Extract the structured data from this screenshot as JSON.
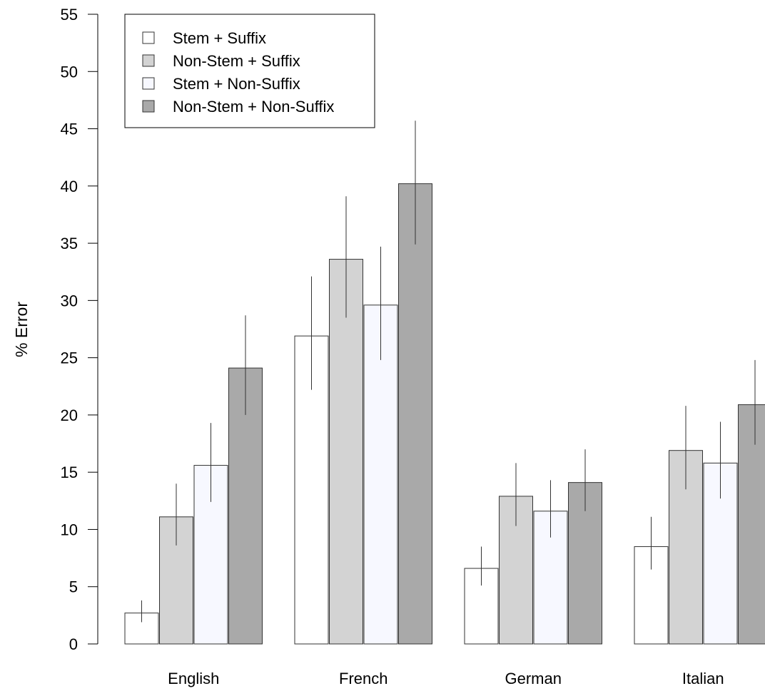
{
  "chart_data": {
    "type": "bar",
    "title": "",
    "xlabel": "",
    "ylabel": "% Error",
    "ylim": [
      0,
      55
    ],
    "yticks": [
      0,
      5,
      10,
      15,
      20,
      25,
      30,
      35,
      40,
      45,
      50,
      55
    ],
    "categories": [
      "English",
      "French",
      "German",
      "Italian"
    ],
    "grid": false,
    "legend": "top-left",
    "series": [
      {
        "name": "Stem + Suffix",
        "color": "#ffffff",
        "values": [
          2.7,
          26.9,
          6.6,
          8.5
        ],
        "error_low": [
          1.9,
          22.2,
          5.1,
          6.5
        ],
        "error_high": [
          3.8,
          32.1,
          8.5,
          11.1
        ]
      },
      {
        "name": "Non-Stem + Suffix",
        "color": "#d3d3d3",
        "values": [
          11.1,
          33.6,
          12.9,
          16.9
        ],
        "error_low": [
          8.6,
          28.5,
          10.3,
          13.5
        ],
        "error_high": [
          14.0,
          39.1,
          15.8,
          20.8
        ]
      },
      {
        "name": "Stem + Non-Suffix",
        "color": "#f7f8ff",
        "values": [
          15.6,
          29.6,
          11.6,
          15.8
        ],
        "error_low": [
          12.4,
          24.8,
          9.3,
          12.7
        ],
        "error_high": [
          19.3,
          34.7,
          14.3,
          19.4
        ]
      },
      {
        "name": "Non-Stem + Non-Suffix",
        "color": "#a9a9a9",
        "values": [
          24.1,
          40.2,
          14.1,
          20.9
        ],
        "error_low": [
          20.0,
          34.9,
          11.6,
          17.4
        ],
        "error_high": [
          28.7,
          45.7,
          17.0,
          24.8
        ]
      }
    ]
  }
}
